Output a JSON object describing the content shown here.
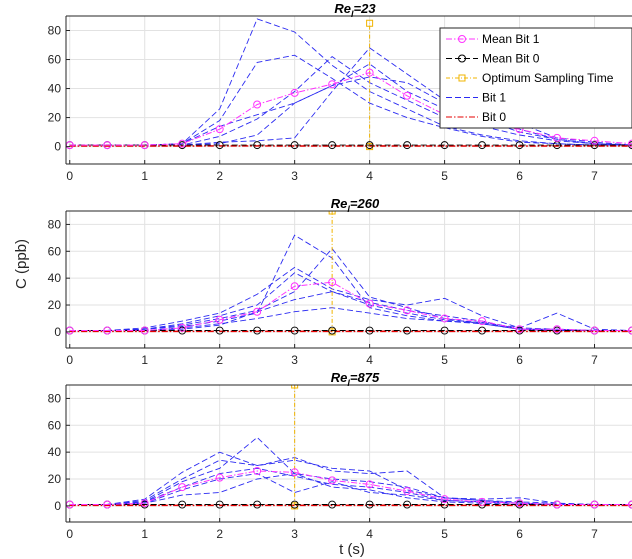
{
  "chart_data": {
    "type": "line",
    "xlabel": "t (s)",
    "ylabel": "C (ppb)",
    "xlim": [
      -0.05,
      7.5
    ],
    "ylim": [
      -12,
      90
    ],
    "xticks": [
      0,
      1,
      2,
      3,
      4,
      5,
      6,
      7
    ],
    "yticks": [
      0,
      20,
      40,
      60,
      80
    ],
    "grid": true,
    "legend_location": "top-right of first panel",
    "colors": {
      "mean_bit1": "#ff33ff",
      "mean_bit0": "#000000",
      "optimum": "#f0b400",
      "bit1": "#2b2bf2",
      "bit0": "#e60000"
    },
    "legend": [
      {
        "label": "Mean Bit 1",
        "key": "mean_bit1"
      },
      {
        "label": "Mean Bit 0",
        "key": "mean_bit0"
      },
      {
        "label": "Optimum Sampling Time",
        "key": "optimum"
      },
      {
        "label": "Bit 1",
        "key": "bit1"
      },
      {
        "label": "Bit 0",
        "key": "bit0"
      }
    ],
    "panels": [
      {
        "title_main": "Re",
        "title_sub": "l",
        "title_value": "=23",
        "x": [
          0,
          0.5,
          1,
          1.5,
          2,
          2.5,
          3,
          3.5,
          4,
          4.5,
          5,
          5.5,
          6,
          6.5,
          7,
          7.5
        ],
        "optimum_time": 4,
        "optimum_value": 85,
        "mean_bit1": [
          1,
          1,
          1,
          2,
          12,
          29,
          37,
          43,
          51,
          35,
          22,
          16,
          12,
          6,
          4,
          2
        ],
        "mean_bit0": [
          1,
          1,
          1,
          1,
          1,
          1,
          1,
          1,
          1,
          1,
          1,
          1,
          1,
          1,
          1,
          1
        ],
        "bit1": [
          [
            1,
            1,
            1,
            2,
            26,
            88,
            79,
            56,
            38,
            26,
            14,
            8,
            4,
            2,
            1,
            1
          ],
          [
            1,
            1,
            1,
            2,
            18,
            58,
            63,
            47,
            30,
            20,
            13,
            7,
            3,
            2,
            1,
            1
          ],
          [
            1,
            1,
            1,
            1,
            7,
            19,
            38,
            62,
            44,
            32,
            20,
            14,
            8,
            4,
            2,
            1
          ],
          [
            1,
            1,
            1,
            1,
            3,
            4,
            6,
            38,
            68,
            50,
            32,
            19,
            10,
            5,
            2,
            1
          ],
          [
            1,
            1,
            1,
            1,
            2,
            8,
            30,
            42,
            57,
            38,
            26,
            22,
            16,
            6,
            3,
            1
          ],
          [
            1,
            1,
            1,
            2,
            14,
            22,
            30,
            42,
            48,
            44,
            30,
            20,
            12,
            5,
            2,
            1
          ]
        ],
        "bit0": [
          [
            0.5,
            0.5,
            0.5,
            0.5,
            0.5,
            0.5,
            0.5,
            0.5,
            0.6,
            0.5,
            0.5,
            0.5,
            0.5,
            0.5,
            0.5,
            0.5
          ],
          [
            0.3,
            0.3,
            0.3,
            0.3,
            0.4,
            0.4,
            0.3,
            0.3,
            0.3,
            0.3,
            0.3,
            0.3,
            0.3,
            0.3,
            0.3,
            0.3
          ]
        ]
      },
      {
        "title_main": "Re",
        "title_sub": "l",
        "title_value": "=260",
        "x": [
          0,
          0.5,
          1,
          1.5,
          2,
          2.5,
          3,
          3.5,
          4,
          4.5,
          5,
          5.5,
          6,
          6.5,
          7,
          7.5
        ],
        "optimum_time": 3.5,
        "optimum_value": 90,
        "mean_bit1": [
          1,
          1,
          1,
          3,
          9,
          15,
          34,
          37,
          21,
          16,
          10,
          8,
          2,
          2,
          1,
          1
        ],
        "mean_bit0": [
          1,
          1,
          1,
          1,
          1,
          1,
          1,
          1,
          1,
          1,
          1,
          1,
          1,
          1,
          1,
          1
        ],
        "bit1": [
          [
            1,
            1,
            2,
            4,
            8,
            14,
            72,
            55,
            18,
            12,
            8,
            6,
            2,
            1,
            1,
            1
          ],
          [
            1,
            1,
            2,
            5,
            10,
            16,
            30,
            62,
            26,
            18,
            10,
            6,
            2,
            2,
            1,
            1
          ],
          [
            1,
            1,
            3,
            8,
            14,
            28,
            48,
            32,
            24,
            20,
            25,
            12,
            3,
            14,
            2,
            1
          ],
          [
            1,
            1,
            2,
            6,
            12,
            20,
            44,
            30,
            22,
            16,
            12,
            8,
            2,
            1,
            1,
            1
          ],
          [
            1,
            1,
            1,
            3,
            6,
            10,
            15,
            18,
            14,
            10,
            8,
            7,
            3,
            2,
            1,
            1
          ],
          [
            1,
            1,
            1,
            2,
            5,
            15,
            24,
            30,
            20,
            14,
            9,
            7,
            2,
            1,
            1,
            1
          ]
        ],
        "bit0": [
          [
            0.5,
            0.5,
            0.5,
            0.5,
            0.5,
            0.5,
            0.5,
            0.5,
            0.6,
            0.5,
            0.5,
            0.5,
            0.5,
            0.5,
            0.5,
            0.5
          ],
          [
            0.3,
            0.3,
            0.3,
            0.3,
            0.3,
            0.3,
            0.3,
            0.3,
            0.3,
            0.3,
            0.3,
            0.3,
            0.3,
            0.3,
            0.3,
            0.3
          ]
        ]
      },
      {
        "title_main": "Re",
        "title_sub": "l",
        "title_value": "=875",
        "x": [
          0,
          0.5,
          1,
          1.5,
          2,
          2.5,
          3,
          3.5,
          4,
          4.5,
          5,
          5.5,
          6,
          6.5,
          7,
          7.5
        ],
        "optimum_time": 3,
        "optimum_value": 90,
        "mean_bit1": [
          1,
          1,
          2,
          14,
          21,
          26,
          25,
          19,
          16,
          11,
          5,
          3,
          2,
          1,
          1,
          1
        ],
        "mean_bit0": [
          1,
          1,
          1,
          1,
          1,
          1,
          1,
          1,
          1,
          1,
          1,
          1,
          1,
          1,
          1,
          1
        ],
        "bit1": [
          [
            1,
            1,
            3,
            18,
            28,
            51,
            24,
            20,
            18,
            14,
            6,
            4,
            2,
            1,
            1,
            1
          ],
          [
            1,
            1,
            5,
            25,
            40,
            30,
            34,
            28,
            26,
            12,
            6,
            4,
            3,
            2,
            1,
            1
          ],
          [
            1,
            1,
            4,
            20,
            34,
            30,
            36,
            26,
            24,
            26,
            6,
            5,
            6,
            2,
            1,
            1
          ],
          [
            1,
            1,
            2,
            12,
            20,
            24,
            10,
            18,
            10,
            8,
            4,
            3,
            2,
            1,
            1,
            1
          ],
          [
            1,
            1,
            2,
            8,
            10,
            20,
            24,
            14,
            12,
            6,
            3,
            2,
            1,
            1,
            1,
            1
          ],
          [
            1,
            1,
            3,
            14,
            24,
            28,
            22,
            16,
            14,
            10,
            4,
            3,
            2,
            1,
            1,
            1
          ]
        ],
        "bit0": [
          [
            0.5,
            0.5,
            0.5,
            0.5,
            0.5,
            0.5,
            0.5,
            0.5,
            0.6,
            0.5,
            0.5,
            0.5,
            0.5,
            0.5,
            0.5,
            0.5
          ],
          [
            0.3,
            0.3,
            0.3,
            0.3,
            0.3,
            0.3,
            0.3,
            0.3,
            0.3,
            0.3,
            0.3,
            0.3,
            0.3,
            0.3,
            0.3,
            0.3
          ]
        ]
      }
    ]
  }
}
